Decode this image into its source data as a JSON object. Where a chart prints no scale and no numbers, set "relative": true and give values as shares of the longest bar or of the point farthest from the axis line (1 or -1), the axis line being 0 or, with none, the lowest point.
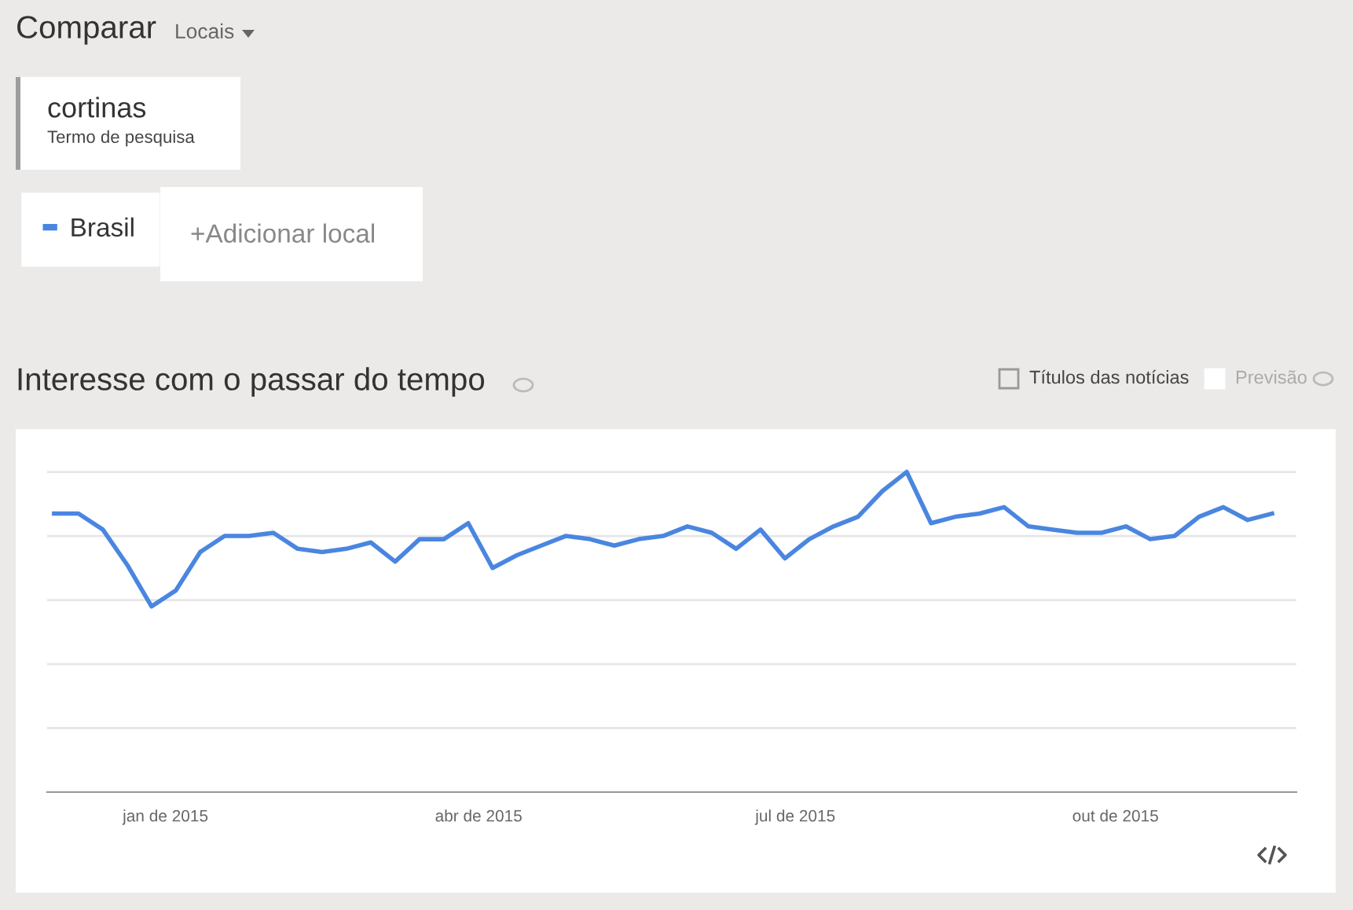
{
  "chart_data": {
    "type": "line",
    "title": "Interesse com o passar do tempo",
    "relative": true,
    "x": [
      "2014-11-30",
      "2014-12-07",
      "2014-12-14",
      "2014-12-21",
      "2014-12-28",
      "2015-01-04",
      "2015-01-11",
      "2015-01-18",
      "2015-01-25",
      "2015-02-01",
      "2015-02-08",
      "2015-02-15",
      "2015-02-22",
      "2015-03-01",
      "2015-03-08",
      "2015-03-15",
      "2015-03-22",
      "2015-03-29",
      "2015-04-05",
      "2015-04-12",
      "2015-04-19",
      "2015-04-26",
      "2015-05-03",
      "2015-05-10",
      "2015-05-17",
      "2015-05-24",
      "2015-05-31",
      "2015-06-07",
      "2015-06-14",
      "2015-06-21",
      "2015-06-28",
      "2015-07-05",
      "2015-07-12",
      "2015-07-19",
      "2015-07-26",
      "2015-08-02",
      "2015-08-09",
      "2015-08-16",
      "2015-08-23",
      "2015-08-30",
      "2015-09-06",
      "2015-09-13",
      "2015-09-20",
      "2015-09-27",
      "2015-10-04",
      "2015-10-11",
      "2015-10-18",
      "2015-10-25",
      "2015-11-01",
      "2015-11-08",
      "2015-11-15"
    ],
    "series": [
      {
        "name": "Brasil",
        "color": "#4a86e0",
        "values": [
          0.87,
          0.87,
          0.82,
          0.71,
          0.58,
          0.63,
          0.75,
          0.8,
          0.8,
          0.81,
          0.76,
          0.75,
          0.76,
          0.78,
          0.72,
          0.79,
          0.79,
          0.84,
          0.7,
          0.74,
          0.77,
          0.8,
          0.79,
          0.77,
          0.79,
          0.8,
          0.83,
          0.81,
          0.76,
          0.82,
          0.73,
          0.79,
          0.83,
          0.86,
          0.94,
          1.0,
          0.84,
          0.86,
          0.87,
          0.89,
          0.83,
          0.82,
          0.81,
          0.81,
          0.83,
          0.79,
          0.8,
          0.86,
          0.89,
          0.85,
          0.87
        ]
      }
    ],
    "xlim": [
      "2014-11-28",
      "2015-11-22"
    ],
    "xticks": [
      {
        "value": "2015-01-01",
        "label": "jan de 2015"
      },
      {
        "value": "2015-04-01",
        "label": "abr de 2015"
      },
      {
        "value": "2015-07-01",
        "label": "jul de 2015"
      },
      {
        "value": "2015-10-01",
        "label": "out de 2015"
      }
    ],
    "grid": "y",
    "tick_labels": "x",
    "legend": "top left",
    "marker": "none",
    "line_style": "solid",
    "annotations": [
      "Comparar",
      "Locais",
      "cortinas",
      "Termo de pesquisa",
      "+Adicionar local",
      "Títulos das notícias",
      "Previsão"
    ]
  }
}
